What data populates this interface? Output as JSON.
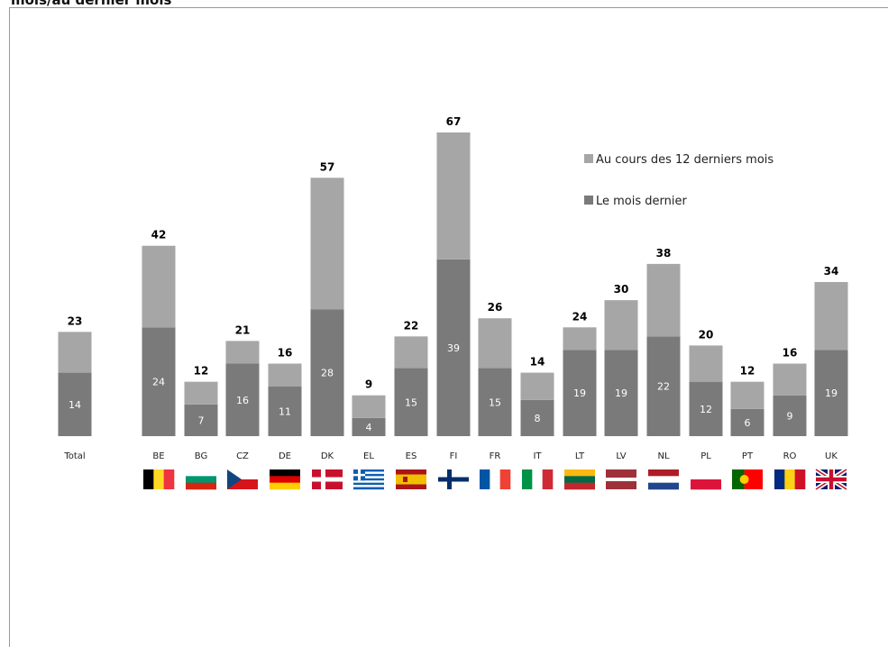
{
  "page": {
    "title": "mois/au dernier mois"
  },
  "colors": {
    "upper": "#a6a6a6",
    "lower": "#7a7a7a"
  },
  "legend": {
    "upper": "Au cours des 12 derniers mois",
    "lower": "Le mois dernier"
  },
  "chart_data": {
    "type": "bar",
    "stacked": true,
    "categories": [
      "Total",
      "BE",
      "BG",
      "CZ",
      "DE",
      "DK",
      "EL",
      "ES",
      "FI",
      "FR",
      "IT",
      "LT",
      "LV",
      "NL",
      "PL",
      "PT",
      "RO",
      "UK"
    ],
    "series": [
      {
        "name": "Le mois dernier",
        "values": [
          14,
          24,
          7,
          16,
          11,
          28,
          4,
          15,
          39,
          15,
          8,
          19,
          19,
          22,
          12,
          6,
          9,
          19
        ]
      },
      {
        "name": "Au cours des 12 derniers mois",
        "values": [
          9,
          18,
          5,
          5,
          5,
          29,
          5,
          7,
          28,
          11,
          6,
          5,
          11,
          16,
          8,
          6,
          7,
          15
        ]
      }
    ],
    "totals": [
      23,
      42,
      12,
      21,
      16,
      57,
      9,
      22,
      67,
      26,
      14,
      24,
      30,
      38,
      20,
      12,
      16,
      34
    ],
    "legend_position": "top-right",
    "ylim": [
      0,
      67
    ]
  },
  "flags": {
    "BE": {
      "kind": "v",
      "colors": [
        "#000000",
        "#FDDA24",
        "#EF3340"
      ]
    },
    "BG": {
      "kind": "h",
      "colors": [
        "#ffffff",
        "#00966E",
        "#D62612"
      ]
    },
    "CZ": {
      "kind": "cz",
      "colors": [
        "#ffffff",
        "#D7141A",
        "#11457E"
      ]
    },
    "DE": {
      "kind": "h",
      "colors": [
        "#000000",
        "#DD0000",
        "#FFCE00"
      ]
    },
    "DK": {
      "kind": "cross",
      "colors": [
        "#C8102E",
        "#ffffff"
      ]
    },
    "EL": {
      "kind": "gr",
      "colors": [
        "#0D5EAF",
        "#ffffff"
      ]
    },
    "ES": {
      "kind": "es",
      "colors": [
        "#AA151B",
        "#F1BF00"
      ]
    },
    "FI": {
      "kind": "cross",
      "colors": [
        "#ffffff",
        "#002F6C"
      ]
    },
    "FR": {
      "kind": "v",
      "colors": [
        "#0055A4",
        "#ffffff",
        "#EF4135"
      ]
    },
    "IT": {
      "kind": "v",
      "colors": [
        "#009246",
        "#ffffff",
        "#CE2B37"
      ]
    },
    "LT": {
      "kind": "h",
      "colors": [
        "#FDB913",
        "#006A44",
        "#C1272D"
      ]
    },
    "LV": {
      "kind": "lv",
      "colors": [
        "#9E3039",
        "#ffffff"
      ]
    },
    "NL": {
      "kind": "h",
      "colors": [
        "#AE1C28",
        "#ffffff",
        "#21468B"
      ]
    },
    "PL": {
      "kind": "h",
      "colors": [
        "#ffffff",
        "#DC143C"
      ]
    },
    "PT": {
      "kind": "pt",
      "colors": [
        "#006600",
        "#FF0000"
      ]
    },
    "RO": {
      "kind": "v",
      "colors": [
        "#002B7F",
        "#FCD116",
        "#CE1126"
      ]
    },
    "UK": {
      "kind": "uk",
      "colors": [
        "#012169",
        "#ffffff",
        "#C8102E"
      ]
    }
  }
}
